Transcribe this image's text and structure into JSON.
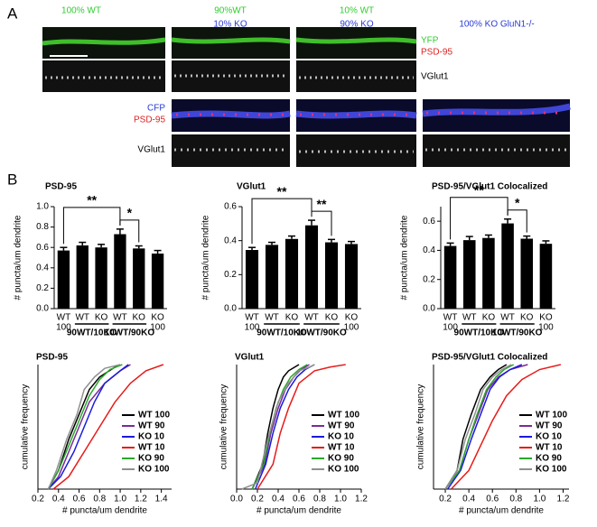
{
  "panel_a": {
    "label": "A",
    "columns": [
      {
        "line1": "100% WT"
      },
      {
        "line1": "90%WT",
        "line2": "10% KO"
      },
      {
        "line1": "10% WT",
        "line2": "90% KO"
      },
      {
        "line1": "100% KO GluN1-/-"
      }
    ],
    "yfp_label": "YFP",
    "psd95_label_top": "PSD-95",
    "vglut1_label_top": "VGlut1",
    "cfp_label": "CFP",
    "psd95_label_bottom": "PSD-95",
    "vglut1_label_bottom": "VGlut1"
  },
  "panel_b": {
    "label": "B"
  },
  "chart_data": [
    {
      "type": "bar",
      "title": "PSD-95",
      "y_label": "# puncta/um dendrite",
      "categories": [
        "WT",
        "WT",
        "KO",
        "WT",
        "KO",
        "KO"
      ],
      "category_sublabels": [
        "100",
        null,
        null,
        null,
        null,
        "100"
      ],
      "group_labels": [
        "90WT/10KO",
        "10WT/90KO"
      ],
      "values": [
        0.57,
        0.62,
        0.6,
        0.73,
        0.59,
        0.54
      ],
      "errors": [
        0.03,
        0.03,
        0.03,
        0.05,
        0.025,
        0.03
      ],
      "color": "#000000",
      "ylim": [
        0,
        1.0
      ],
      "yticks": [
        {
          "value": 0,
          "label": "0.0"
        },
        0.2,
        0.4,
        0.6,
        0.8,
        {
          "value": 1.0,
          "label": "1.0"
        }
      ],
      "annotations": [
        {
          "text": "**",
          "from": 0,
          "to": 3
        },
        {
          "text": "*",
          "from": 3,
          "to": 4
        }
      ]
    },
    {
      "type": "bar",
      "title": "VGlut1",
      "y_label": "# puncta/um dendrite",
      "categories": [
        "WT",
        "WT",
        "KO",
        "WT",
        "KO",
        "KO"
      ],
      "category_sublabels": [
        "100",
        null,
        null,
        null,
        null,
        "100"
      ],
      "group_labels": [
        "90WT/10KO",
        "10WT/90KO"
      ],
      "values": [
        0.345,
        0.375,
        0.41,
        0.49,
        0.39,
        0.38
      ],
      "errors": [
        0.015,
        0.015,
        0.017,
        0.03,
        0.017,
        0.015
      ],
      "color": "#000000",
      "ylim": [
        0,
        0.6
      ],
      "yticks": [
        {
          "value": 0,
          "label": "0.0"
        },
        0.2,
        0.4,
        0.6
      ],
      "annotations": [
        {
          "text": "**",
          "from": 0,
          "to": 3
        },
        {
          "text": "**",
          "from": 3,
          "to": 4
        }
      ]
    },
    {
      "type": "bar",
      "title": "PSD-95/VGlut1 Colocalized",
      "y_label": "# puncta/um dendrite",
      "categories": [
        "WT",
        "WT",
        "KO",
        "WT",
        "KO",
        "KO"
      ],
      "category_sublabels": [
        "100",
        null,
        null,
        null,
        null,
        "100"
      ],
      "group_labels": [
        "90WT/10KO",
        "10WT/90KO"
      ],
      "values": [
        0.43,
        0.47,
        0.485,
        0.585,
        0.48,
        0.445
      ],
      "errors": [
        0.02,
        0.025,
        0.02,
        0.03,
        0.018,
        0.02
      ],
      "color": "#000000",
      "ylim": [
        0,
        0.7
      ],
      "yticks": [
        {
          "value": 0,
          "label": "0.0"
        },
        0.2,
        0.4,
        0.6
      ],
      "annotations": [
        {
          "text": "**",
          "from": 0,
          "to": 3
        },
        {
          "text": "*",
          "from": 3,
          "to": 4
        }
      ]
    },
    {
      "type": "line",
      "title": "PSD-95",
      "x_label": "# puncta/um dendrite",
      "y_label": "cumulative frequency",
      "xlim": [
        0.2,
        1.5
      ],
      "xticks": [
        0.2,
        0.4,
        0.6,
        0.8,
        {
          "value": 1.0,
          "label": "1.0"
        },
        1.2,
        1.4
      ],
      "ylim": [
        0,
        1
      ],
      "legend": "lower right",
      "series": [
        {
          "name": "WT 100",
          "color": "#000000",
          "x": [
            0.3,
            0.4,
            0.5,
            0.6,
            0.7,
            0.8,
            0.95,
            1.0
          ],
          "values": [
            0,
            0.15,
            0.4,
            0.6,
            0.8,
            0.9,
            0.98,
            1
          ]
        },
        {
          "name": "WT 90",
          "color": "#7a2a9a",
          "x": [
            0.3,
            0.4,
            0.5,
            0.6,
            0.7,
            0.85,
            1.0,
            1.1
          ],
          "values": [
            0,
            0.1,
            0.3,
            0.5,
            0.7,
            0.85,
            0.95,
            1
          ]
        },
        {
          "name": "KO 10",
          "color": "#1a1adc",
          "x": [
            0.3,
            0.42,
            0.55,
            0.65,
            0.75,
            0.85,
            1.0,
            1.08
          ],
          "values": [
            0,
            0.1,
            0.3,
            0.5,
            0.7,
            0.85,
            0.95,
            1
          ]
        },
        {
          "name": "WT 10",
          "color": "#e81a1a",
          "x": [
            0.35,
            0.5,
            0.65,
            0.8,
            0.95,
            1.1,
            1.25,
            1.42
          ],
          "values": [
            0,
            0.1,
            0.3,
            0.5,
            0.7,
            0.85,
            0.95,
            1
          ]
        },
        {
          "name": "KO 90",
          "color": "#2aa82a",
          "x": [
            0.3,
            0.4,
            0.5,
            0.6,
            0.7,
            0.8,
            0.9,
            1.02
          ],
          "values": [
            0,
            0.15,
            0.35,
            0.55,
            0.75,
            0.88,
            0.96,
            1
          ]
        },
        {
          "name": "KO 100",
          "color": "#909090",
          "x": [
            0.3,
            0.38,
            0.48,
            0.58,
            0.65,
            0.75,
            0.85,
            1.0
          ],
          "values": [
            0,
            0.15,
            0.4,
            0.6,
            0.8,
            0.9,
            0.97,
            1
          ]
        }
      ]
    },
    {
      "type": "line",
      "title": "VGlut1",
      "x_label": "# puncta/um dendrite",
      "y_label": "cumulative frequency",
      "xlim": [
        0,
        1.2
      ],
      "xticks": [
        {
          "value": 0,
          "label": "0.0"
        },
        0.2,
        0.4,
        0.6,
        0.8,
        {
          "value": 1.0,
          "label": "1.0"
        },
        1.2
      ],
      "ylim": [
        0,
        1
      ],
      "legend": "lower right",
      "series": [
        {
          "name": "WT 100",
          "color": "#000000",
          "x": [
            0.15,
            0.25,
            0.3,
            0.35,
            0.4,
            0.45,
            0.5,
            0.6
          ],
          "values": [
            0,
            0.2,
            0.45,
            0.65,
            0.8,
            0.9,
            0.95,
            1
          ]
        },
        {
          "name": "WT 90",
          "color": "#7a2a9a",
          "x": [
            0.15,
            0.27,
            0.33,
            0.4,
            0.47,
            0.55,
            0.62,
            0.7
          ],
          "values": [
            0,
            0.2,
            0.45,
            0.65,
            0.8,
            0.9,
            0.96,
            1
          ]
        },
        {
          "name": "KO 10",
          "color": "#1a1adc",
          "x": [
            0.18,
            0.28,
            0.35,
            0.42,
            0.5,
            0.58,
            0.66,
            0.75
          ],
          "values": [
            0,
            0.2,
            0.45,
            0.65,
            0.8,
            0.9,
            0.96,
            1
          ]
        },
        {
          "name": "WT 10",
          "color": "#e81a1a",
          "x": [
            0.2,
            0.35,
            0.42,
            0.5,
            0.6,
            0.75,
            0.9,
            1.05
          ],
          "values": [
            0,
            0.2,
            0.45,
            0.65,
            0.85,
            0.95,
            0.98,
            1
          ]
        },
        {
          "name": "KO 90",
          "color": "#2aa82a",
          "x": [
            0.15,
            0.26,
            0.32,
            0.38,
            0.45,
            0.52,
            0.6,
            0.68
          ],
          "values": [
            0,
            0.2,
            0.45,
            0.65,
            0.8,
            0.9,
            0.96,
            1
          ]
        },
        {
          "name": "KO 100",
          "color": "#909090",
          "x": [
            0.05,
            0.2,
            0.3,
            0.4,
            0.5,
            0.6,
            0.7,
            0.75
          ],
          "values": [
            0,
            0.05,
            0.4,
            0.7,
            0.85,
            0.95,
            0.98,
            1
          ]
        }
      ]
    },
    {
      "type": "line",
      "title": "PSD-95/VGlut1 Colocalized",
      "x_label": "# puncta/um dendrite",
      "y_label": "cumulative frequency",
      "xlim": [
        0.1,
        1.25
      ],
      "xticks": [
        0.2,
        0.4,
        0.6,
        0.8,
        {
          "value": 1.0,
          "label": "1.0"
        },
        1.2
      ],
      "ylim": [
        0,
        1
      ],
      "legend": "lower right",
      "series": [
        {
          "name": "WT 100",
          "color": "#000000",
          "x": [
            0.2,
            0.3,
            0.35,
            0.42,
            0.5,
            0.58,
            0.65,
            0.72
          ],
          "values": [
            0,
            0.15,
            0.4,
            0.6,
            0.8,
            0.9,
            0.96,
            1
          ]
        },
        {
          "name": "WT 90",
          "color": "#7a2a9a",
          "x": [
            0.2,
            0.32,
            0.4,
            0.48,
            0.56,
            0.65,
            0.75,
            0.9
          ],
          "values": [
            0,
            0.15,
            0.4,
            0.6,
            0.8,
            0.9,
            0.96,
            1
          ]
        },
        {
          "name": "KO 10",
          "color": "#1a1adc",
          "x": [
            0.22,
            0.33,
            0.42,
            0.5,
            0.58,
            0.66,
            0.75,
            0.85
          ],
          "values": [
            0,
            0.15,
            0.4,
            0.6,
            0.8,
            0.9,
            0.96,
            1
          ]
        },
        {
          "name": "WT 10",
          "color": "#e81a1a",
          "x": [
            0.25,
            0.4,
            0.5,
            0.6,
            0.72,
            0.85,
            1.0,
            1.18
          ],
          "values": [
            0,
            0.15,
            0.35,
            0.55,
            0.75,
            0.88,
            0.96,
            1
          ]
        },
        {
          "name": "KO 90",
          "color": "#2aa82a",
          "x": [
            0.2,
            0.32,
            0.4,
            0.47,
            0.55,
            0.63,
            0.7,
            0.78
          ],
          "values": [
            0,
            0.15,
            0.4,
            0.6,
            0.8,
            0.9,
            0.96,
            1
          ]
        },
        {
          "name": "KO 100",
          "color": "#909090",
          "x": [
            0.2,
            0.3,
            0.37,
            0.45,
            0.52,
            0.6,
            0.68,
            0.76
          ],
          "values": [
            0,
            0.15,
            0.4,
            0.6,
            0.8,
            0.9,
            0.96,
            1
          ]
        }
      ]
    }
  ]
}
